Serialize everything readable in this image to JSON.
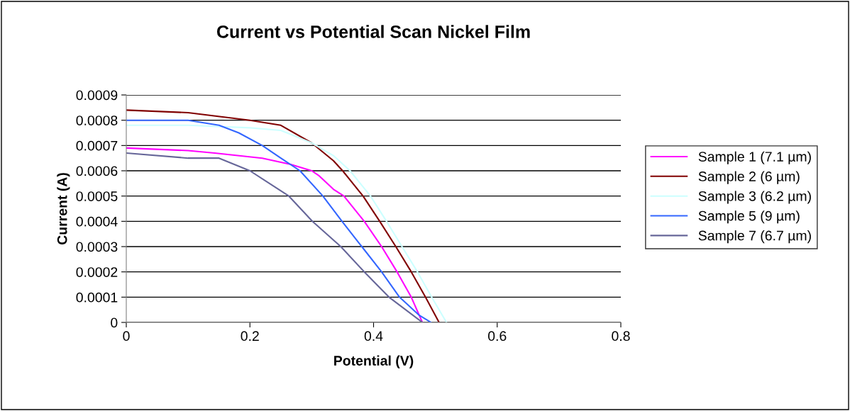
{
  "chart_data": {
    "type": "line",
    "title": "Current vs Potential Scan Nickel Film",
    "xlabel": "Potential (V)",
    "ylabel": "Current (A)",
    "xlim": [
      0,
      0.8
    ],
    "xticks": [
      0,
      0.2,
      0.4,
      0.6,
      0.8
    ],
    "ylim": [
      0,
      0.0009
    ],
    "yticks": [
      0,
      0.0001,
      0.0002,
      0.0003,
      0.0004,
      0.0005,
      0.0006,
      0.0007,
      0.0008,
      0.0009
    ],
    "grid": "y",
    "legend": "right",
    "marker": "none",
    "line_style": "solid",
    "series": [
      {
        "name": "Sample 1 (7.1 µm)",
        "color": "#ff00ff",
        "x": [
          0,
          0.1,
          0.143,
          0.22,
          0.266,
          0.3,
          0.312,
          0.335,
          0.352,
          0.385,
          0.413,
          0.438,
          0.461,
          0.479
        ],
        "values": [
          0.00069,
          0.00068,
          0.00067,
          0.00065,
          0.000625,
          0.0006,
          0.00058,
          0.000527,
          0.0005,
          0.0004,
          0.0003,
          0.0002,
          0.0001,
          0
        ]
      },
      {
        "name": "Sample 2 (6 µm)",
        "color": "#800000",
        "x": [
          0,
          0.1,
          0.2,
          0.25,
          0.3,
          0.335,
          0.35,
          0.383,
          0.41,
          0.436,
          0.461,
          0.484,
          0.506
        ],
        "values": [
          0.00084,
          0.00083,
          0.0008,
          0.00078,
          0.00071,
          0.00064,
          0.0006,
          0.0005,
          0.0004,
          0.0003,
          0.0002,
          0.0001,
          0
        ]
      },
      {
        "name": "Sample 3 (6.2 µm)",
        "color": "#ccffff",
        "x": [
          0,
          0.1,
          0.2,
          0.25,
          0.3,
          0.335,
          0.362,
          0.395,
          0.421,
          0.446,
          0.471,
          0.494,
          0.518
        ],
        "values": [
          0.00078,
          0.00078,
          0.00077,
          0.00076,
          0.00071,
          0.00066,
          0.0006,
          0.0005,
          0.0004,
          0.0003,
          0.0002,
          0.0001,
          0
        ]
      },
      {
        "name": "Sample 5 (9 µm)",
        "color": "#3366ff",
        "x": [
          0,
          0.1,
          0.15,
          0.182,
          0.22,
          0.25,
          0.281,
          0.318,
          0.349,
          0.381,
          0.413,
          0.442,
          0.473,
          0.493
        ],
        "values": [
          0.0008,
          0.0008,
          0.00078,
          0.00075,
          0.0007,
          0.00065,
          0.0006,
          0.0005,
          0.0004,
          0.0003,
          0.0002,
          0.0001,
          3e-05,
          0
        ]
      },
      {
        "name": "Sample 7 (6.7 µm)",
        "color": "#666699",
        "x": [
          0,
          0.1,
          0.15,
          0.2,
          0.263,
          0.301,
          0.347,
          0.385,
          0.425,
          0.479
        ],
        "values": [
          0.00067,
          0.00065,
          0.00065,
          0.0006,
          0.0005,
          0.0004,
          0.0003,
          0.0002,
          0.0001,
          0
        ]
      }
    ]
  }
}
